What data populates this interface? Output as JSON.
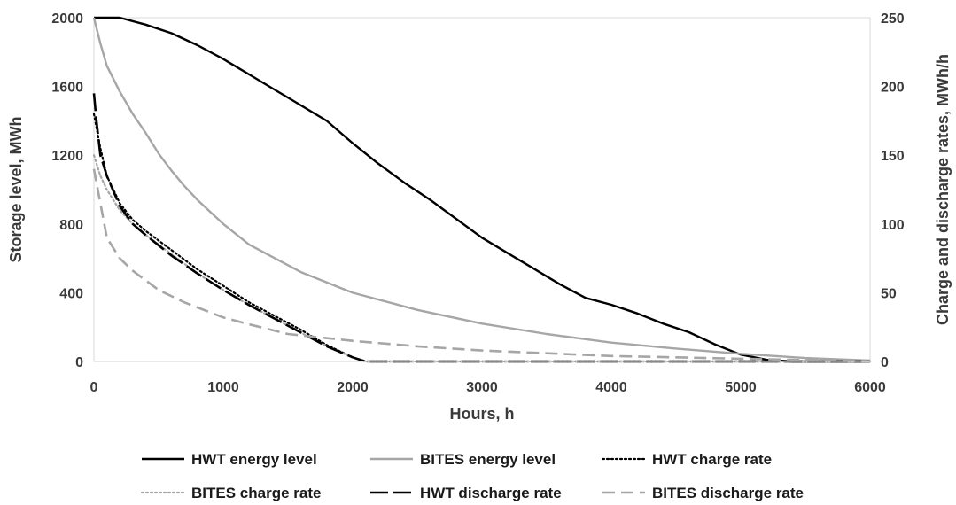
{
  "chart_data": {
    "type": "line",
    "xlabel": "Hours, h",
    "ylabel": "Storage level, MWh",
    "y2label": "Charge and discharge rates, MWh/h",
    "xlim": [
      0,
      6000
    ],
    "ylim": [
      0,
      2000
    ],
    "y2lim": [
      0,
      250
    ],
    "xticks": [
      "0",
      "1000",
      "2000",
      "3000",
      "4000",
      "5000",
      "6000"
    ],
    "yticks": [
      "0",
      "400",
      "800",
      "1200",
      "1600",
      "2000"
    ],
    "y2ticks": [
      "0",
      "50",
      "100",
      "150",
      "200",
      "250"
    ],
    "grid": false,
    "legend_position": "bottom",
    "series": [
      {
        "name": "HWT energy level",
        "axis": "left",
        "color": "#000000",
        "style": "solid",
        "x": [
          0,
          200,
          400,
          600,
          800,
          1000,
          1200,
          1400,
          1600,
          1800,
          2000,
          2200,
          2400,
          2600,
          2800,
          3000,
          3200,
          3400,
          3600,
          3800,
          4000,
          4200,
          4400,
          4600,
          4800,
          5000,
          5200,
          5400,
          5600,
          6000
        ],
        "y": [
          2000,
          2000,
          1960,
          1910,
          1840,
          1760,
          1670,
          1580,
          1490,
          1400,
          1270,
          1150,
          1040,
          940,
          830,
          720,
          630,
          540,
          450,
          370,
          330,
          280,
          220,
          170,
          100,
          40,
          10,
          0,
          0,
          0
        ]
      },
      {
        "name": "BITES energy level",
        "axis": "left",
        "color": "#a6a6a6",
        "style": "solid",
        "x": [
          0,
          50,
          100,
          200,
          300,
          400,
          500,
          600,
          700,
          800,
          900,
          1000,
          1200,
          1400,
          1600,
          1800,
          2000,
          2500,
          3000,
          3500,
          4000,
          4500,
          5000,
          5500,
          6000
        ],
        "y": [
          2000,
          1850,
          1720,
          1570,
          1440,
          1330,
          1210,
          1110,
          1020,
          940,
          870,
          800,
          680,
          600,
          520,
          460,
          400,
          300,
          220,
          160,
          110,
          75,
          45,
          20,
          5
        ]
      },
      {
        "name": "HWT charge rate",
        "axis": "right",
        "color": "#000000",
        "style": "dotted",
        "x": [
          0,
          50,
          100,
          200,
          300,
          400,
          600,
          800,
          1000,
          1200,
          1400,
          1600,
          1800,
          2000,
          2100,
          6000
        ],
        "y": [
          180,
          155,
          135,
          115,
          103,
          95,
          81,
          67,
          55,
          43,
          33,
          23,
          12,
          3,
          0,
          0
        ]
      },
      {
        "name": "BITES charge rate",
        "axis": "right",
        "color": "#a6a6a6",
        "style": "dotted",
        "x": [
          0,
          50,
          100,
          200,
          300,
          400,
          600,
          800,
          1000,
          1200,
          1400,
          1600,
          1800,
          2000,
          2100,
          6000
        ],
        "y": [
          150,
          135,
          125,
          110,
          100,
          92,
          78,
          64,
          52,
          41,
          31,
          21,
          11,
          3,
          0,
          0
        ]
      },
      {
        "name": "HWT discharge rate",
        "axis": "right",
        "color": "#000000",
        "style": "longdash",
        "x": [
          0,
          20,
          50,
          100,
          200,
          300,
          400,
          600,
          800,
          1000,
          1200,
          1400,
          1600,
          1800,
          2000,
          2100,
          6000
        ],
        "y": [
          195,
          175,
          150,
          135,
          113,
          100,
          92,
          77,
          64,
          52,
          41,
          31,
          21,
          11,
          3,
          0,
          0
        ]
      },
      {
        "name": "BITES discharge rate",
        "axis": "right",
        "color": "#a6a6a6",
        "style": "dash",
        "x": [
          0,
          50,
          100,
          200,
          300,
          500,
          700,
          1000,
          1200,
          1500,
          2000,
          2500,
          3000,
          3500,
          4000,
          4500,
          5000,
          5500,
          6000
        ],
        "y": [
          140,
          115,
          90,
          75,
          66,
          52,
          43,
          32,
          27,
          20,
          15,
          11,
          8,
          6,
          4,
          3,
          2,
          1,
          0
        ]
      }
    ]
  }
}
